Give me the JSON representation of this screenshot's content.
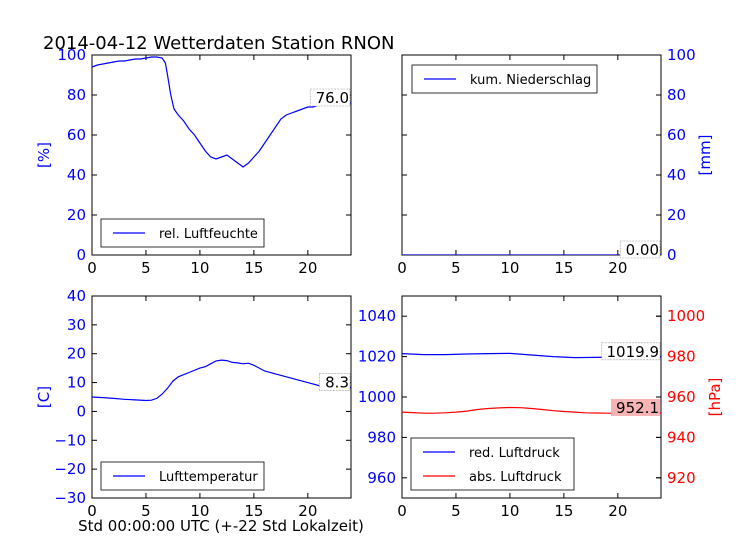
{
  "title": "2014-04-12 Wetterdaten Station RNON",
  "xlabel": "Std 00:00:00 UTC (+-22 Std Lokalzeit)",
  "colors": {
    "primary": "#0000ff",
    "secondary": "#ff0000",
    "annot_secondary_bg": "#f8b4b4"
  },
  "chart_data": [
    {
      "id": "humidity",
      "type": "line",
      "xlim": [
        0,
        24
      ],
      "ylim": [
        0,
        100
      ],
      "x_ticks": [
        "0",
        "5",
        "10",
        "15",
        "20"
      ],
      "y_ticks": [
        "0",
        "20",
        "40",
        "60",
        "80",
        "100"
      ],
      "ylabel": "[%]",
      "legend": "bottom-left",
      "series": [
        {
          "name": "rel. Luftfeuchte",
          "color": "#0000ff",
          "x": [
            0,
            0.5,
            1,
            1.5,
            2,
            2.5,
            3,
            3.5,
            4,
            4.5,
            5,
            5.5,
            6,
            6.5,
            6.8,
            7,
            7.3,
            7.6,
            8,
            8.5,
            9,
            9.5,
            10,
            10.5,
            11,
            11.5,
            12,
            12.5,
            13,
            13.5,
            14,
            14.5,
            15,
            15.5,
            16,
            16.5,
            17,
            17.5,
            18,
            18.5,
            19,
            19.5,
            20,
            20.5,
            21,
            21.5,
            22,
            22.5,
            23,
            23.5,
            24
          ],
          "values": [
            94,
            95,
            95.5,
            96,
            96.5,
            97,
            97,
            97.5,
            98,
            98,
            98.5,
            99,
            99,
            98.5,
            96,
            90,
            80,
            73,
            70,
            67,
            63,
            60,
            56,
            52,
            49,
            48,
            49,
            50,
            48,
            46,
            44,
            46,
            49,
            52,
            56,
            60,
            64,
            68,
            70,
            71,
            72,
            73,
            74,
            74,
            75,
            76,
            75,
            76,
            75,
            76,
            76
          ]
        }
      ],
      "annotation": "76.0"
    },
    {
      "id": "precipitation",
      "type": "line",
      "xlim": [
        0,
        24
      ],
      "ylim": [
        0,
        100
      ],
      "x_ticks": [
        "0",
        "5",
        "10",
        "15",
        "20"
      ],
      "y_ticks": [
        "0",
        "20",
        "40",
        "60",
        "80",
        "100"
      ],
      "ylabel": "[mm]",
      "legend": "top-left",
      "series": [
        {
          "name": "kum. Niederschlag",
          "color": "#0000ff",
          "x": [
            0,
            24
          ],
          "values": [
            0,
            0
          ]
        }
      ],
      "annotation": "0.00"
    },
    {
      "id": "temperature",
      "type": "line",
      "xlim": [
        0,
        24
      ],
      "ylim": [
        -30,
        40
      ],
      "x_ticks": [
        "0",
        "5",
        "10",
        "15",
        "20"
      ],
      "y_ticks": [
        "−30",
        "−20",
        "−10",
        "0",
        "10",
        "20",
        "30",
        "40"
      ],
      "ylabel": "[C]",
      "legend": "bottom-left",
      "series": [
        {
          "name": "Lufttemperatur",
          "color": "#0000ff",
          "x": [
            0,
            1,
            2,
            3,
            4,
            5,
            5.5,
            6,
            6.5,
            7,
            7.5,
            8,
            9,
            10,
            10.5,
            11,
            11.5,
            12,
            12.5,
            13,
            13.5,
            14,
            14.5,
            15,
            16,
            17,
            18,
            19,
            20,
            21,
            22,
            23,
            24
          ],
          "values": [
            5,
            4.8,
            4.5,
            4.2,
            4,
            3.8,
            3.9,
            4.5,
            6,
            8,
            10.5,
            12,
            13.5,
            15,
            15.5,
            16.5,
            17.5,
            17.8,
            17.6,
            17,
            16.8,
            16.5,
            16.7,
            16,
            14,
            13,
            12,
            11,
            10,
            9,
            8.5,
            8.3,
            8.3
          ]
        }
      ],
      "annotation": "8.3"
    },
    {
      "id": "pressure",
      "type": "line",
      "xlim": [
        0,
        24
      ],
      "ylim": [
        950,
        1050
      ],
      "y2lim": [
        910,
        1010
      ],
      "x_ticks": [
        "0",
        "5",
        "10",
        "15",
        "20"
      ],
      "y_ticks": [
        "960",
        "980",
        "1000",
        "1020",
        "1040"
      ],
      "y2_ticks": [
        "920",
        "940",
        "960",
        "980",
        "1000"
      ],
      "y2label": "[hPa]",
      "legend": "bottom-left",
      "series": [
        {
          "name": "red. Luftdruck",
          "color": "#0000ff",
          "axis": "left",
          "x": [
            0,
            2,
            4,
            6,
            8,
            10,
            12,
            14,
            16,
            18,
            20,
            22,
            24
          ],
          "values": [
            1021.5,
            1021,
            1021,
            1021.3,
            1021.5,
            1021.6,
            1020.8,
            1020,
            1019.5,
            1019.6,
            1019.8,
            1019.9,
            1019.9
          ]
        },
        {
          "name": "abs. Luftdruck",
          "color": "#ff0000",
          "axis": "right",
          "x": [
            0,
            1,
            2,
            3,
            4,
            5,
            6,
            7,
            8,
            9,
            10,
            11,
            12,
            13,
            14,
            15,
            16,
            17,
            18,
            19,
            20,
            21,
            22,
            23,
            24
          ],
          "values": [
            952.5,
            952.3,
            952,
            952,
            952.2,
            952.5,
            953,
            953.8,
            954.3,
            954.6,
            954.8,
            954.7,
            954.3,
            953.8,
            953.2,
            952.8,
            952.5,
            952.2,
            952.1,
            952,
            952,
            952.1,
            952.1,
            952.1,
            952.1
          ]
        }
      ],
      "annotations": [
        "1019.9",
        "952.1"
      ]
    }
  ]
}
